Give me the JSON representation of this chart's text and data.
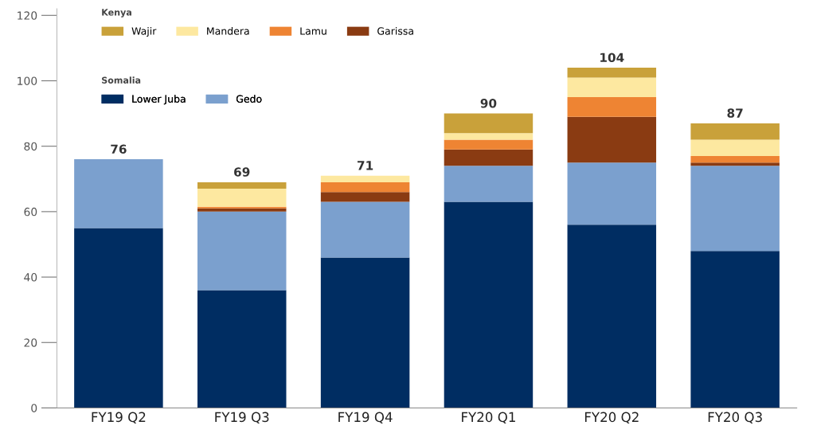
{
  "chart_data": {
    "type": "bar",
    "stacked": true,
    "categories": [
      "FY19 Q2",
      "FY19 Q3",
      "FY19 Q4",
      "FY20 Q1",
      "FY20 Q2",
      "FY20 Q3"
    ],
    "series": [
      {
        "name": "Lower Juba",
        "color": "#002d62",
        "values": [
          55,
          36,
          46,
          63,
          56,
          48
        ]
      },
      {
        "name": "Gedo",
        "color": "#7ba0ce",
        "values": [
          21,
          24,
          17,
          11,
          19,
          26
        ]
      },
      {
        "name": "Garissa",
        "color": "#8a3b12",
        "values": [
          0,
          1,
          3,
          5,
          14,
          1
        ]
      },
      {
        "name": "Lamu",
        "color": "#ee8433",
        "values": [
          0,
          0.5,
          3,
          3,
          6,
          2
        ]
      },
      {
        "name": "Mandera",
        "color": "#fde8a0",
        "values": [
          0,
          5.5,
          2,
          2,
          6,
          5
        ]
      },
      {
        "name": "Wajir",
        "color": "#c9a13a",
        "values": [
          0,
          2,
          0,
          6,
          3,
          5
        ]
      }
    ],
    "totals": [
      "76",
      "69",
      "71",
      "90",
      "104",
      "87"
    ],
    "annotations": [
      "Kenya",
      "Somalia"
    ],
    "ylim": [
      0,
      122
    ],
    "yticks": [
      0,
      20,
      40,
      60,
      80,
      100,
      120
    ],
    "grid": false,
    "legend": "top left"
  }
}
